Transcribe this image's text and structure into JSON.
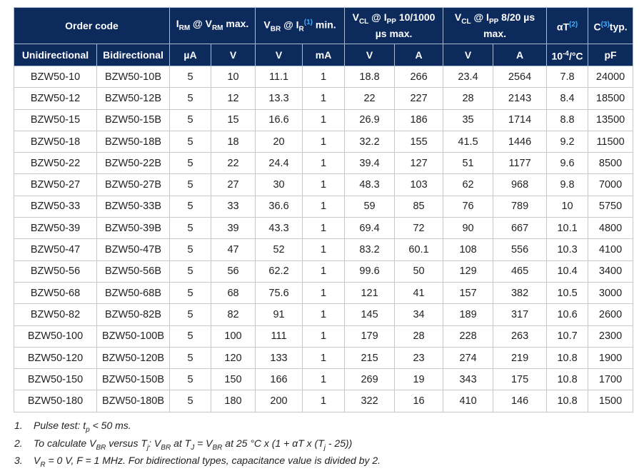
{
  "header_row1": [
    {
      "colspan": 2,
      "parts": [
        {
          "t": "Order code"
        }
      ]
    },
    {
      "colspan": 2,
      "parts": [
        {
          "t": "I"
        },
        {
          "sub": "RM"
        },
        {
          "t": " @ V"
        },
        {
          "sub": "RM"
        },
        {
          "t": " max."
        }
      ]
    },
    {
      "colspan": 2,
      "parts": [
        {
          "t": "V"
        },
        {
          "sub": "BR"
        },
        {
          "t": " @ I"
        },
        {
          "sub": "R"
        },
        {
          "ref": "(1)"
        },
        {
          "t": " min."
        }
      ]
    },
    {
      "colspan": 2,
      "parts": [
        {
          "t": "V"
        },
        {
          "sub": "CL"
        },
        {
          "t": " @ I"
        },
        {
          "sub": "PP"
        },
        {
          "t": " 10/1000 µs max."
        }
      ]
    },
    {
      "colspan": 2,
      "parts": [
        {
          "t": "V"
        },
        {
          "sub": "CL"
        },
        {
          "t": " @ I"
        },
        {
          "sub": "PP"
        },
        {
          "t": " 8/20 µs max."
        }
      ]
    },
    {
      "colspan": 1,
      "parts": [
        {
          "t": "αT"
        },
        {
          "ref": "(2)"
        }
      ]
    },
    {
      "colspan": 1,
      "parts": [
        {
          "t": "C"
        },
        {
          "ref": "(3)"
        },
        {
          "t": "typ."
        }
      ]
    }
  ],
  "header_row2": [
    [
      {
        "t": "Unidirectional"
      }
    ],
    [
      {
        "t": "Bidirectional"
      }
    ],
    [
      {
        "t": "µA"
      }
    ],
    [
      {
        "t": "V"
      }
    ],
    [
      {
        "t": "V"
      }
    ],
    [
      {
        "t": "mA"
      }
    ],
    [
      {
        "t": "V"
      }
    ],
    [
      {
        "t": "A"
      }
    ],
    [
      {
        "t": "V"
      }
    ],
    [
      {
        "t": "A"
      }
    ],
    [
      {
        "t": "10"
      },
      {
        "sup": "-4"
      },
      {
        "t": "/°C"
      }
    ],
    [
      {
        "t": "pF"
      }
    ]
  ],
  "rows": [
    [
      "BZW50-10",
      "BZW50-10B",
      "5",
      "10",
      "11.1",
      "1",
      "18.8",
      "266",
      "23.4",
      "2564",
      "7.8",
      "24000"
    ],
    [
      "BZW50-12",
      "BZW50-12B",
      "5",
      "12",
      "13.3",
      "1",
      "22",
      "227",
      "28",
      "2143",
      "8.4",
      "18500"
    ],
    [
      "BZW50-15",
      "BZW50-15B",
      "5",
      "15",
      "16.6",
      "1",
      "26.9",
      "186",
      "35",
      "1714",
      "8.8",
      "13500"
    ],
    [
      "BZW50-18",
      "BZW50-18B",
      "5",
      "18",
      "20",
      "1",
      "32.2",
      "155",
      "41.5",
      "1446",
      "9.2",
      "11500"
    ],
    [
      "BZW50-22",
      "BZW50-22B",
      "5",
      "22",
      "24.4",
      "1",
      "39.4",
      "127",
      "51",
      "1177",
      "9.6",
      "8500"
    ],
    [
      "BZW50-27",
      "BZW50-27B",
      "5",
      "27",
      "30",
      "1",
      "48.3",
      "103",
      "62",
      "968",
      "9.8",
      "7000"
    ],
    [
      "BZW50-33",
      "BZW50-33B",
      "5",
      "33",
      "36.6",
      "1",
      "59",
      "85",
      "76",
      "789",
      "10",
      "5750"
    ],
    [
      "BZW50-39",
      "BZW50-39B",
      "5",
      "39",
      "43.3",
      "1",
      "69.4",
      "72",
      "90",
      "667",
      "10.1",
      "4800"
    ],
    [
      "BZW50-47",
      "BZW50-47B",
      "5",
      "47",
      "52",
      "1",
      "83.2",
      "60.1",
      "108",
      "556",
      "10.3",
      "4100"
    ],
    [
      "BZW50-56",
      "BZW50-56B",
      "5",
      "56",
      "62.2",
      "1",
      "99.6",
      "50",
      "129",
      "465",
      "10.4",
      "3400"
    ],
    [
      "BZW50-68",
      "BZW50-68B",
      "5",
      "68",
      "75.6",
      "1",
      "121",
      "41",
      "157",
      "382",
      "10.5",
      "3000"
    ],
    [
      "BZW50-82",
      "BZW50-82B",
      "5",
      "82",
      "91",
      "1",
      "145",
      "34",
      "189",
      "317",
      "10.6",
      "2600"
    ],
    [
      "BZW50-100",
      "BZW50-100B",
      "5",
      "100",
      "111",
      "1",
      "179",
      "28",
      "228",
      "263",
      "10.7",
      "2300"
    ],
    [
      "BZW50-120",
      "BZW50-120B",
      "5",
      "120",
      "133",
      "1",
      "215",
      "23",
      "274",
      "219",
      "10.8",
      "1900"
    ],
    [
      "BZW50-150",
      "BZW50-150B",
      "5",
      "150",
      "166",
      "1",
      "269",
      "19",
      "343",
      "175",
      "10.8",
      "1700"
    ],
    [
      "BZW50-180",
      "BZW50-180B",
      "5",
      "180",
      "200",
      "1",
      "322",
      "16",
      "410",
      "146",
      "10.8",
      "1500"
    ]
  ],
  "notes": [
    {
      "num": "1.",
      "parts": [
        {
          "t": "Pulse test: t"
        },
        {
          "sub": "p"
        },
        {
          "t": " < 50 ms."
        }
      ]
    },
    {
      "num": "2.",
      "parts": [
        {
          "t": "To calculate V"
        },
        {
          "sub": "BR"
        },
        {
          "t": " versus T"
        },
        {
          "sub": "j"
        },
        {
          "t": ": V"
        },
        {
          "sub": "BR"
        },
        {
          "t": " at T"
        },
        {
          "sub": "J"
        },
        {
          "t": " = V"
        },
        {
          "sub": "BR"
        },
        {
          "t": " at 25 °C x (1 + αT x (T"
        },
        {
          "sub": "j"
        },
        {
          "t": " - 25))"
        }
      ]
    },
    {
      "num": "3.",
      "parts": [
        {
          "t": "V"
        },
        {
          "sub": "R"
        },
        {
          "t": " = 0 V, F = 1 MHz. For bidirectional types, capacitance value is divided by 2."
        }
      ]
    }
  ],
  "colors": {
    "header_bg": "#0c2a5c",
    "reference": "#3fb0ff"
  }
}
